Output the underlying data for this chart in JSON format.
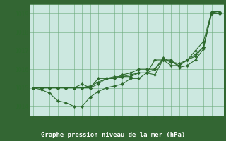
{
  "xlabel": "Graphe pression niveau de la mer (hPa)",
  "plot_bg": "#cce8e0",
  "bottom_bar_color": "#336633",
  "xlabel_color": "#ffffff",
  "line_color": "#2d6a2d",
  "marker_color": "#2d6a2d",
  "ylim": [
    1013.5,
    1019.5
  ],
  "xlim": [
    -0.5,
    23.5
  ],
  "yticks": [
    1014,
    1015,
    1016,
    1017,
    1018,
    1019
  ],
  "xticks": [
    0,
    1,
    2,
    3,
    4,
    5,
    6,
    7,
    8,
    9,
    10,
    11,
    12,
    13,
    14,
    15,
    16,
    17,
    18,
    19,
    20,
    21,
    22,
    23
  ],
  "series": [
    [
      1015.0,
      1014.9,
      1014.7,
      1014.3,
      1014.2,
      1014.0,
      1014.0,
      1014.5,
      1014.8,
      1015.0,
      1015.1,
      1015.2,
      1015.5,
      1015.5,
      1015.8,
      1015.7,
      1016.5,
      1016.5,
      1016.1,
      1016.2,
      1016.5,
      1017.1,
      1019.1,
      1019.1
    ],
    [
      1015.0,
      1015.0,
      1015.0,
      1015.0,
      1015.0,
      1015.0,
      1015.0,
      1015.1,
      1015.3,
      1015.5,
      1015.6,
      1015.6,
      1015.7,
      1015.8,
      1015.8,
      1016.0,
      1016.5,
      1016.4,
      1016.2,
      1016.5,
      1016.8,
      1017.2,
      1019.0,
      1019.0
    ],
    [
      1015.0,
      1015.0,
      1015.0,
      1015.0,
      1015.0,
      1015.0,
      1015.0,
      1015.0,
      1015.2,
      1015.5,
      1015.5,
      1015.6,
      1015.6,
      1015.8,
      1015.8,
      1016.5,
      1016.5,
      1016.2,
      1016.2,
      1016.5,
      1017.0,
      1017.5,
      1019.1,
      1019.0
    ],
    [
      1015.0,
      1015.0,
      1015.0,
      1015.0,
      1015.0,
      1015.0,
      1015.2,
      1015.0,
      1015.5,
      1015.5,
      1015.5,
      1015.7,
      1015.8,
      1016.0,
      1016.0,
      1016.0,
      1016.6,
      1016.4,
      1016.3,
      1016.5,
      1016.7,
      1017.2,
      1019.0,
      1019.0
    ]
  ]
}
